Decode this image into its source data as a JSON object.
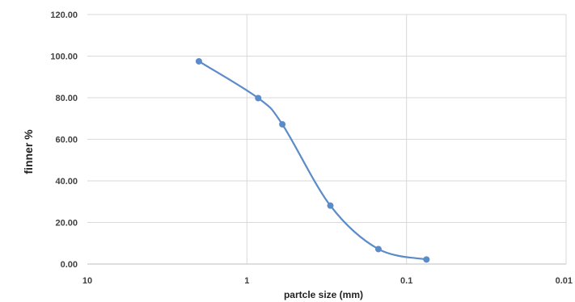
{
  "chart_data": {
    "type": "line",
    "title": "",
    "xlabel": "partcle size (mm)",
    "ylabel": "finner %",
    "x_scale": "log-reversed",
    "xlim": [
      10,
      0.01
    ],
    "ylim": [
      0,
      120
    ],
    "grid": true,
    "legend": "none",
    "smooth": true,
    "series": [
      {
        "color": "#5B8BC9",
        "points": [
          {
            "x": 2,
            "y": 97.5
          },
          {
            "x": 0.85,
            "y": 79.8
          },
          {
            "x": 0.6,
            "y": 67.2
          },
          {
            "x": 0.3,
            "y": 28.1
          },
          {
            "x": 0.15,
            "y": 7.2
          },
          {
            "x": 0.075,
            "y": 2.2
          }
        ]
      }
    ],
    "y_ticks": [
      "0.00",
      "20.00",
      "40.00",
      "60.00",
      "80.00",
      "100.00",
      "120.00"
    ],
    "x_ticks": [
      "10",
      "1",
      "0.1",
      "0.01"
    ]
  }
}
